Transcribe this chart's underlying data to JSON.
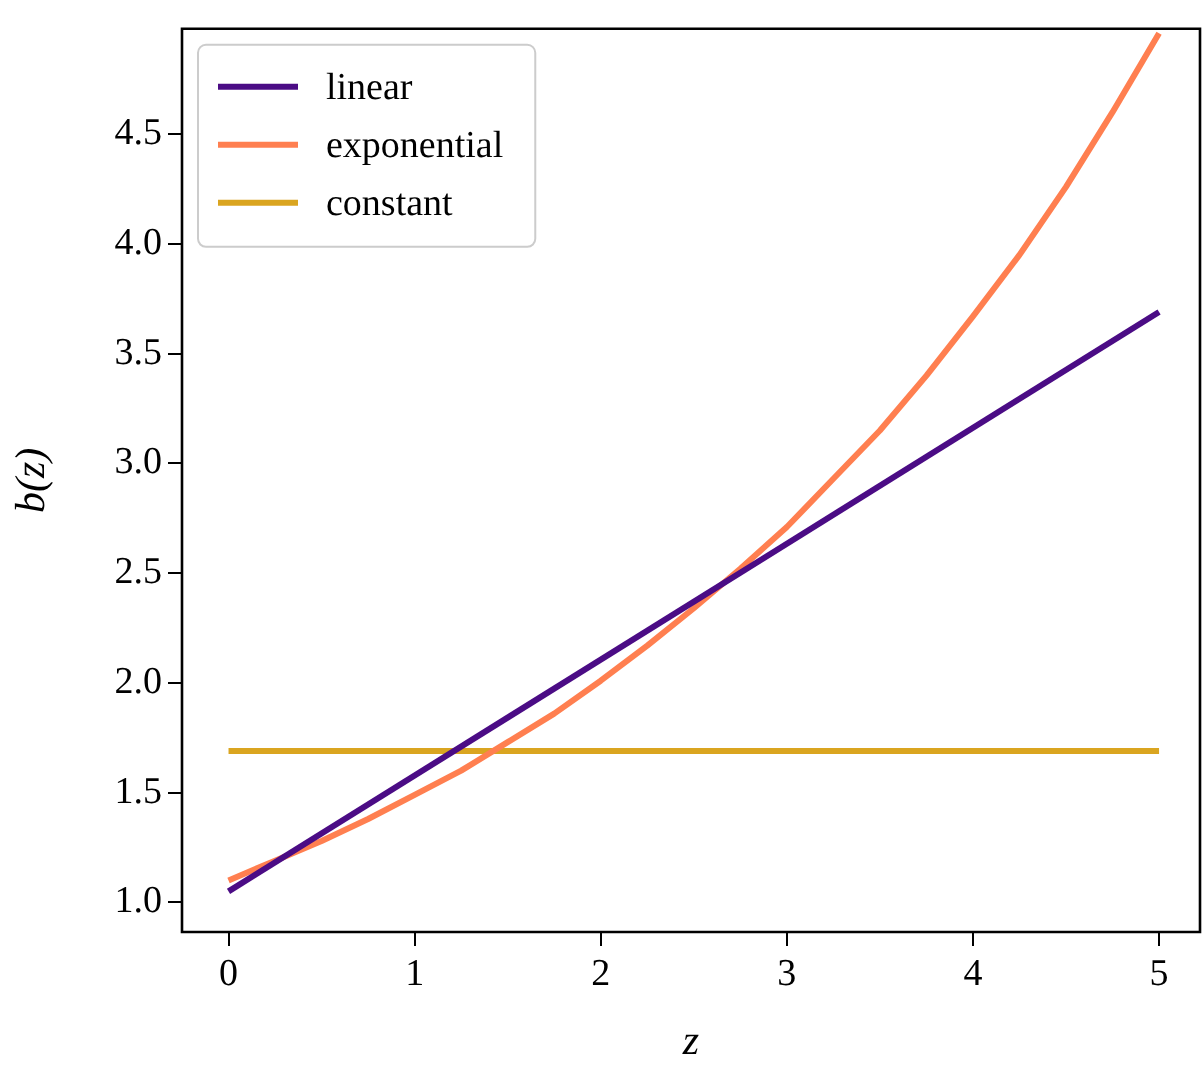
{
  "chart_data": {
    "type": "line",
    "xlabel": "z",
    "ylabel": "b(z)",
    "xlim": [
      -0.25,
      5.22
    ],
    "ylim": [
      0.865,
      4.98
    ],
    "xticks": [
      0,
      1,
      2,
      3,
      4,
      5
    ],
    "yticks": [
      {
        "value": 1,
        "label": "1.0"
      },
      {
        "value": 1.5,
        "label": "1.5"
      },
      {
        "value": 2,
        "label": "2.0"
      },
      {
        "value": 2.5,
        "label": "2.5"
      },
      {
        "value": 3,
        "label": "3.0"
      },
      {
        "value": 3.5,
        "label": "3.5"
      },
      {
        "value": 4,
        "label": "4.0"
      },
      {
        "value": 4.5,
        "label": "4.5"
      }
    ],
    "grid": false,
    "legend": "top left",
    "marker": "none",
    "line_style": "solid",
    "series": [
      {
        "name": "linear",
        "color": "#4b0c85",
        "x": [
          0,
          5
        ],
        "values": [
          1.05,
          3.69
        ]
      },
      {
        "name": "exponential",
        "color": "#ff7f50",
        "x": [
          0,
          0.25,
          0.5,
          0.75,
          1,
          1.25,
          1.5,
          1.75,
          2,
          2.25,
          2.5,
          2.75,
          3,
          3.25,
          3.5,
          3.75,
          4,
          4.25,
          4.5,
          4.75,
          5
        ],
        "values": [
          1.1,
          1.19,
          1.28,
          1.38,
          1.49,
          1.6,
          1.73,
          1.86,
          2.01,
          2.17,
          2.34,
          2.52,
          2.71,
          2.93,
          3.15,
          3.4,
          3.67,
          3.95,
          4.26,
          4.6,
          4.96
        ]
      },
      {
        "name": "constant",
        "color": "#daa520",
        "x": [
          0,
          5
        ],
        "values": [
          1.69,
          1.69
        ]
      }
    ]
  }
}
